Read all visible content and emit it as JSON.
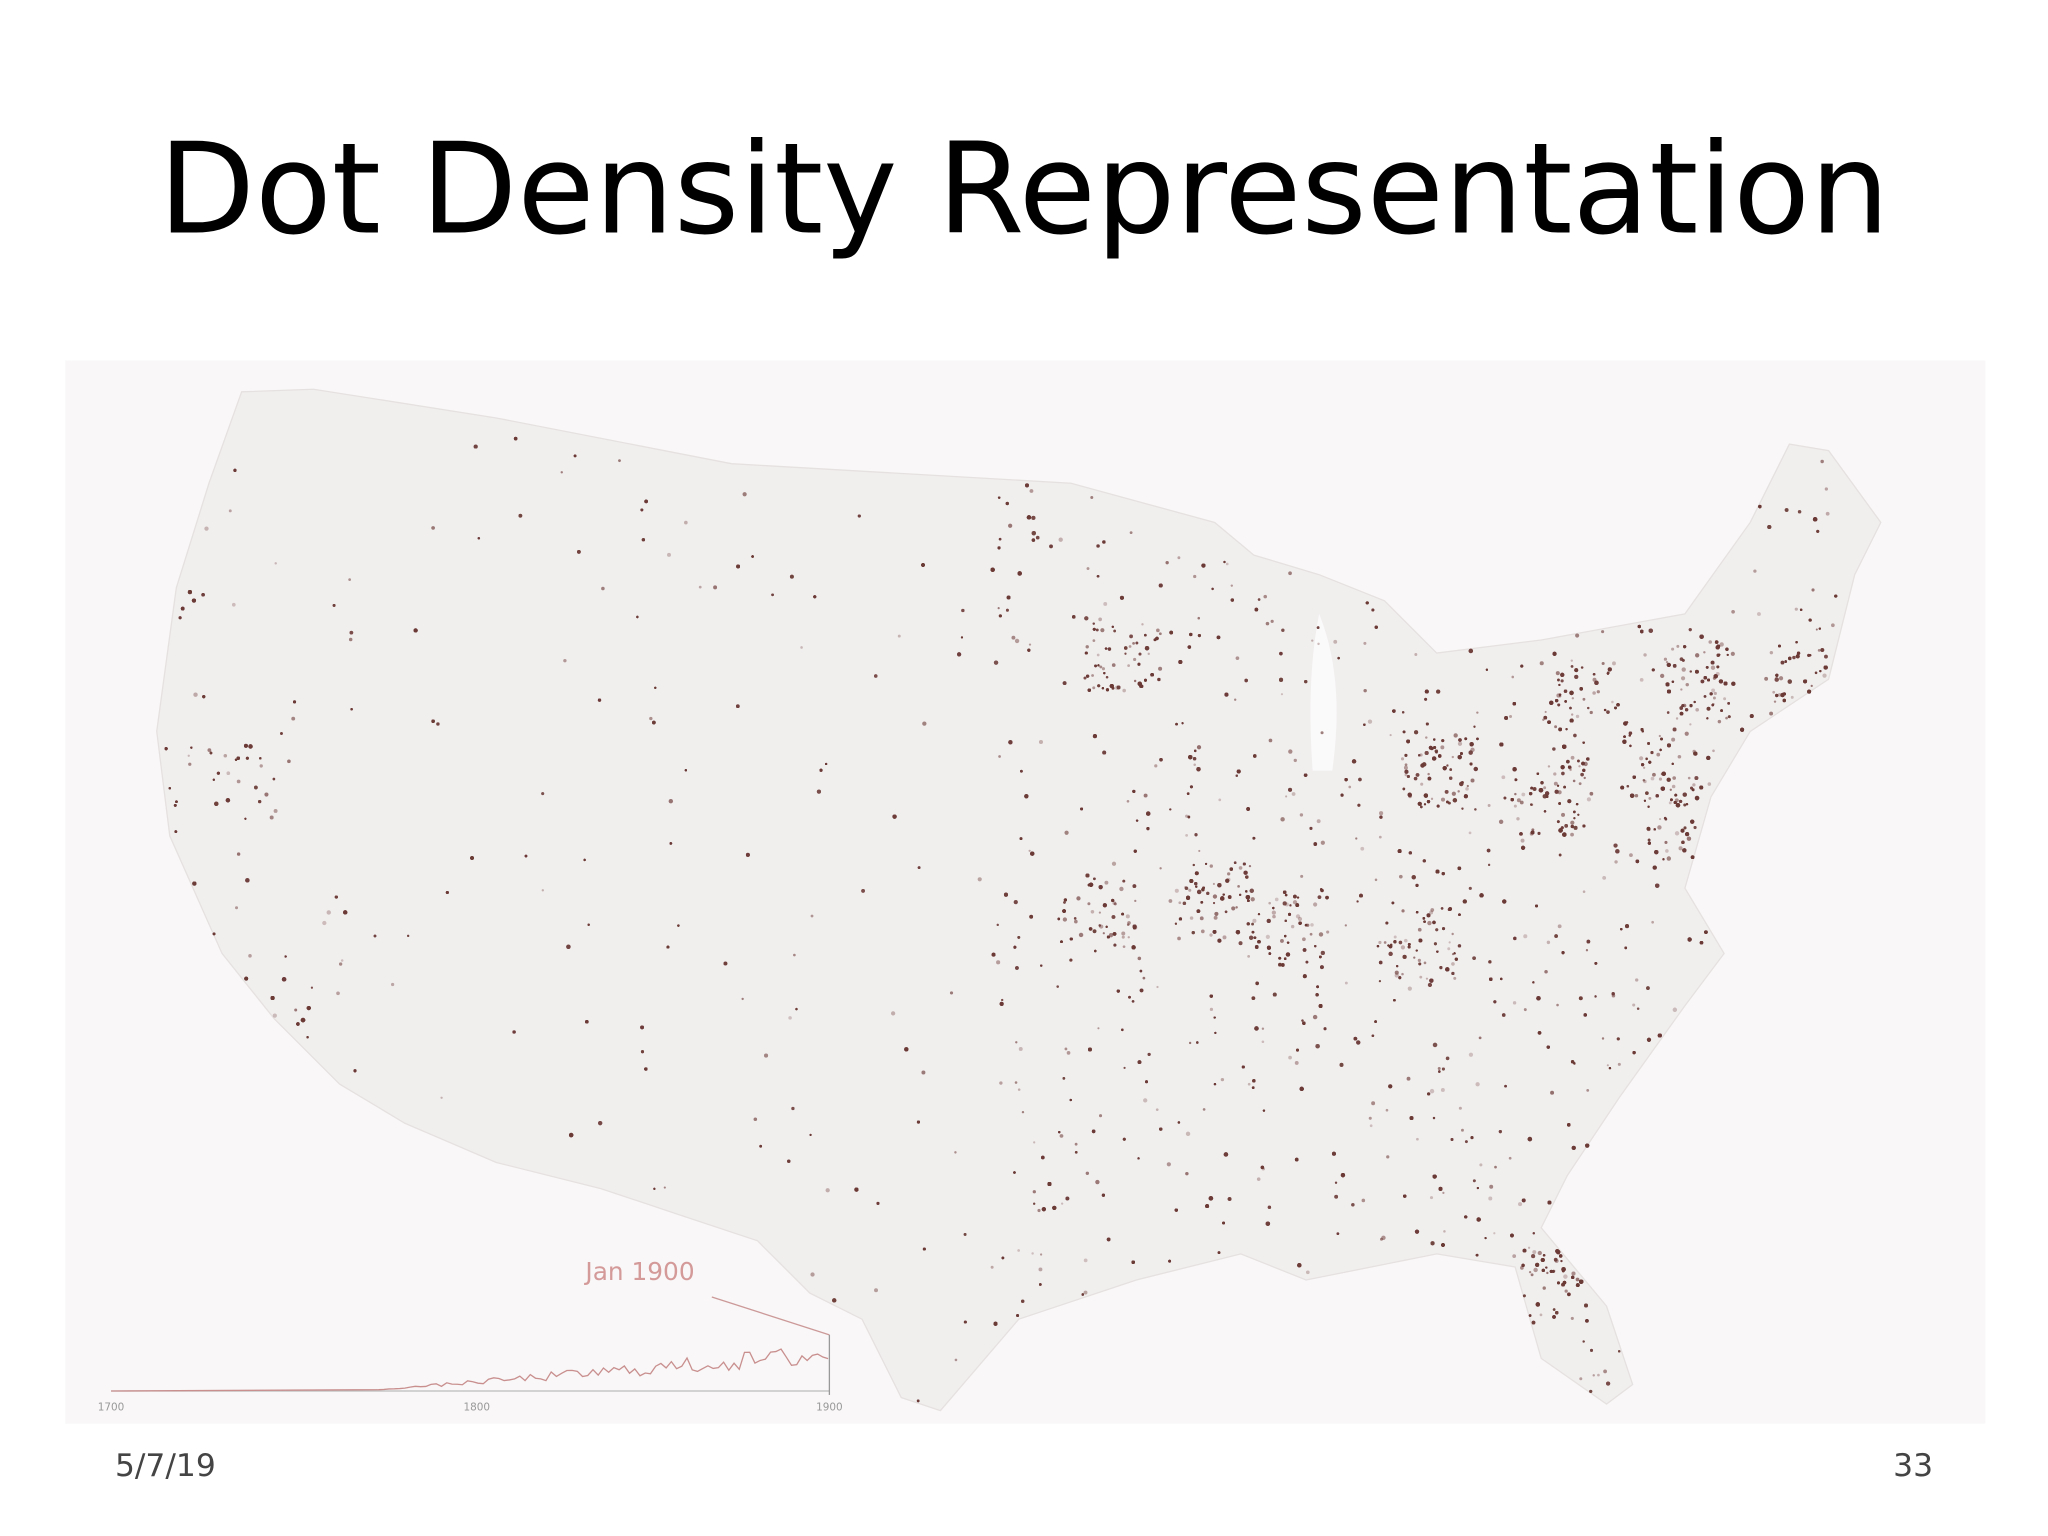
{
  "slide": {
    "title": "Dot Density Representation",
    "map": {
      "date_label": "Jan 1900",
      "timeline_labels": [
        "1700",
        "1800",
        "1900"
      ]
    },
    "footer": {
      "date": "5/7/19",
      "page": "33"
    }
  }
}
